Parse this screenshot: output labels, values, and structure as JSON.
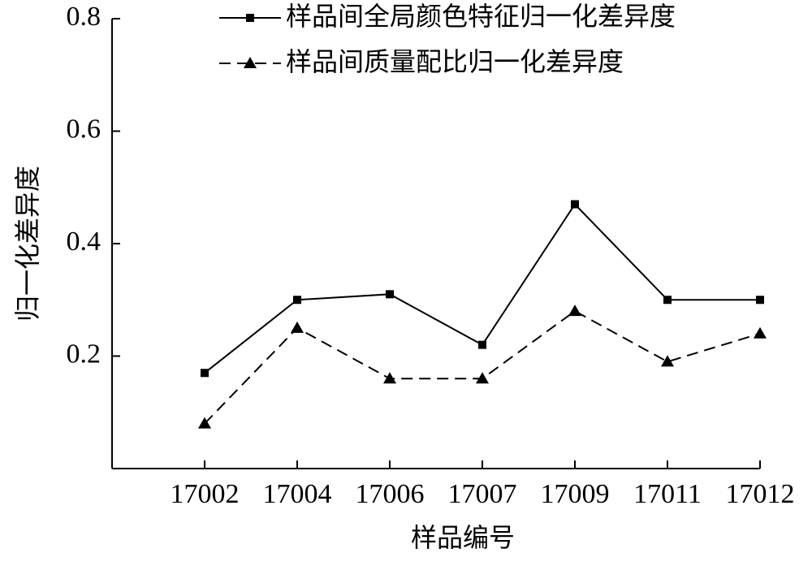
{
  "chart_data": {
    "type": "line",
    "x_label": "样品编号",
    "y_label": "归一化差异度",
    "categories": [
      "17002",
      "17004",
      "17006",
      "17007",
      "17009",
      "17011",
      "17012"
    ],
    "series": [
      {
        "name": "样品间全局颜色特征归一化差异度",
        "color": "#000000",
        "marker": "square",
        "dash": false,
        "values": [
          0.17,
          0.3,
          0.31,
          0.22,
          0.47,
          0.3,
          0.3
        ]
      },
      {
        "name": "样品间质量配比归一化差异度",
        "color": "#000000",
        "marker": "triangle",
        "dash": true,
        "values": [
          0.08,
          0.25,
          0.16,
          0.16,
          0.28,
          0.19,
          0.24
        ]
      }
    ],
    "ylim": [
      0,
      0.8
    ],
    "yticks": [
      0.2,
      0.4,
      0.6,
      0.8
    ],
    "grid": false,
    "legend": "top-right"
  }
}
